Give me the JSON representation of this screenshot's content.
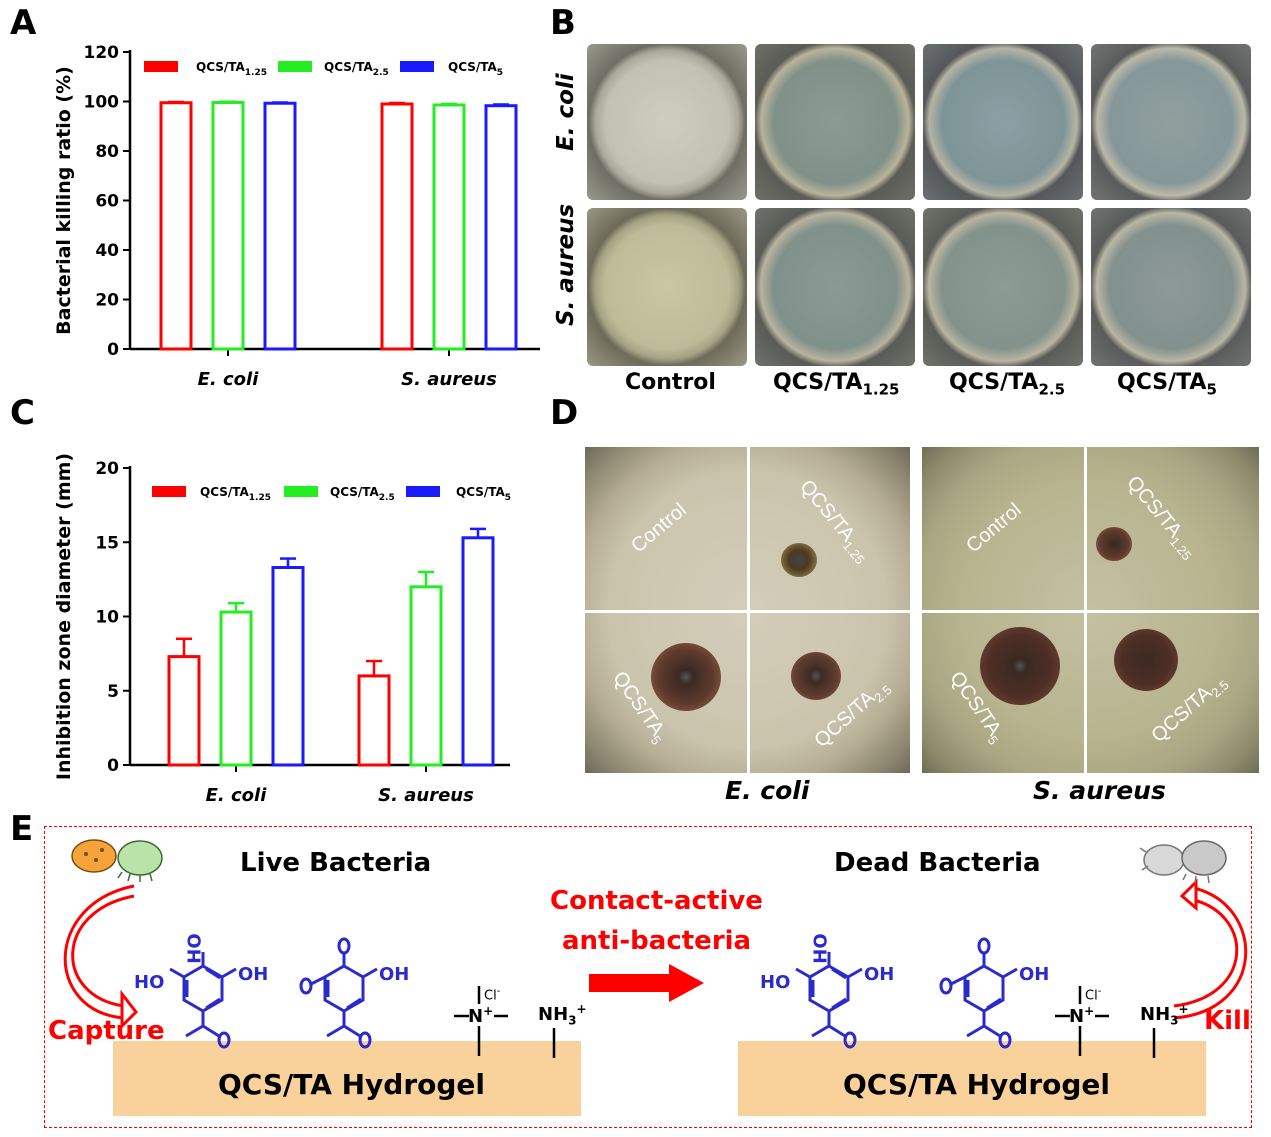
{
  "panels": {
    "a": "A",
    "b": "B",
    "c": "C",
    "d": "D",
    "e": "E"
  },
  "colors": {
    "qcs_ta_1_25": "#ff0000",
    "qcs_ta_2_5": "#22ee22",
    "qcs_ta_5": "#1a1aff",
    "structure": "#2b2bcc",
    "arrow": "#ff0000",
    "hydrogel": "#f9d29b"
  },
  "legend": {
    "base": "QCS/TA",
    "subs": [
      "1.25",
      "2.5",
      "5"
    ]
  },
  "chart_data": [
    {
      "type": "bar",
      "panel": "A",
      "ylabel": "Bacterial killing ratio (%)",
      "ylim": [
        0,
        120
      ],
      "yticks": [
        "0",
        "20",
        "40",
        "60",
        "80",
        "100",
        "120"
      ],
      "categories": [
        "E. coli",
        "S. aureus"
      ],
      "series": [
        {
          "name": "QCS/TA1.25",
          "values": [
            99.5,
            99.0
          ],
          "errors": [
            0.3,
            0.4
          ]
        },
        {
          "name": "QCS/TA2.5",
          "values": [
            99.6,
            98.6
          ],
          "errors": [
            0.3,
            0.4
          ]
        },
        {
          "name": "QCS/TA5",
          "values": [
            99.3,
            98.3
          ],
          "errors": [
            0.3,
            0.5
          ]
        }
      ]
    },
    {
      "type": "bar",
      "panel": "C",
      "ylabel": "Inhibition zone diameter (mm)",
      "ylim": [
        0,
        20
      ],
      "yticks": [
        "0",
        "5",
        "10",
        "15",
        "20"
      ],
      "categories": [
        "E. coli",
        "S. aureus"
      ],
      "series": [
        {
          "name": "QCS/TA1.25",
          "values": [
            7.3,
            6.0
          ],
          "errors": [
            1.2,
            1.0
          ]
        },
        {
          "name": "QCS/TA2.5",
          "values": [
            10.3,
            12.0
          ],
          "errors": [
            0.6,
            1.0
          ]
        },
        {
          "name": "QCS/TA5",
          "values": [
            13.3,
            15.3
          ],
          "errors": [
            0.6,
            0.6
          ]
        }
      ]
    }
  ],
  "panel_b": {
    "rows": [
      "E. coli",
      "S. aureus"
    ],
    "columns": [
      "Control",
      "QCS/TA",
      "QCS/TA",
      "QCS/TA"
    ],
    "column_subs": [
      "",
      "1.25",
      "2.5",
      "5"
    ]
  },
  "panel_d": {
    "captions": [
      "E. coli",
      "S. aureus"
    ],
    "quadrant_labels": [
      "Control",
      "QCS/TA",
      "QCS/TA",
      "QCS/TA"
    ],
    "quadrant_subs": [
      "",
      "1.25",
      "5",
      "2.5"
    ]
  },
  "panel_e": {
    "live": "Live Bacteria",
    "dead": "Dead Bacteria",
    "mechanism_line1": "Contact-active",
    "mechanism_line2": "anti-bacteria",
    "capture": "Capture",
    "kill": "Kill",
    "hydrogel": "QCS/TA Hydrogel",
    "ho": "HO",
    "oh": "OH",
    "o": "O",
    "n": "N",
    "cl": "Cl",
    "nh3": "NH",
    "sub3": "3",
    "plus": "+",
    "minus": "-"
  }
}
